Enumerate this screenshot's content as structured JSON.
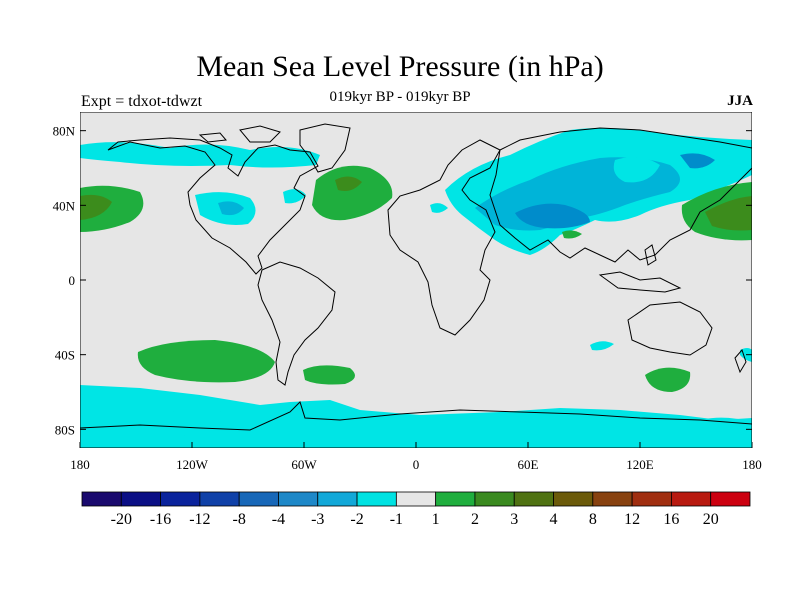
{
  "title": "Mean Sea Level Pressure (in hPa)",
  "subtitle": "019kyr BP - 019kyr BP",
  "left_label": "Expt = tdxot-tdwzt",
  "right_label": "JJA",
  "colors": {
    "land_background": "#e6e6e6",
    "neg1": "#00e5e5",
    "neg2": "#00b4d8",
    "neg3": "#008ccb",
    "pos1": "#1fae3e",
    "pos2": "#3c8c1c",
    "pos3": "#556b0e"
  },
  "map_data": {
    "projection": "equirectangular",
    "lon_range": [
      -180,
      180
    ],
    "lat_range": [
      -90,
      90
    ],
    "x_ticks": [
      {
        "lon": -180,
        "label": "180"
      },
      {
        "lon": -120,
        "label": "120W"
      },
      {
        "lon": -60,
        "label": "60W"
      },
      {
        "lon": 0,
        "label": "0"
      },
      {
        "lon": 60,
        "label": "60E"
      },
      {
        "lon": 120,
        "label": "120E"
      },
      {
        "lon": 180,
        "label": "180"
      }
    ],
    "y_ticks": [
      {
        "lat": 80,
        "label": "80N"
      },
      {
        "lat": 40,
        "label": "40N"
      },
      {
        "lat": 0,
        "label": "0"
      },
      {
        "lat": -40,
        "label": "40S"
      },
      {
        "lat": -80,
        "label": "80S"
      }
    ]
  },
  "colorbar": {
    "colors": [
      "#1a0a6e",
      "#0b0f85",
      "#0a239c",
      "#1041a8",
      "#1767b8",
      "#1e88c8",
      "#12a8d8",
      "#00e2e2",
      "#e6e6e6",
      "#1fae3e",
      "#3a8a20",
      "#4f7212",
      "#6b5a0a",
      "#884210",
      "#a02e10",
      "#b81a10",
      "#cc0010"
    ],
    "labels": [
      "-20",
      "-16",
      "-12",
      "-8",
      "-4",
      "-3",
      "-2",
      "-1",
      "1",
      "2",
      "3",
      "4",
      "8",
      "12",
      "16",
      "20"
    ]
  }
}
